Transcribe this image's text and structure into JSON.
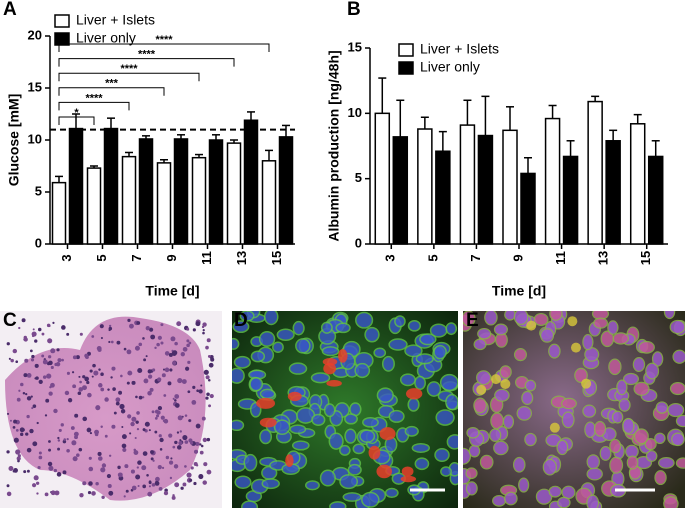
{
  "chart_data": [
    {
      "type": "bar",
      "panel": "A",
      "y_label": "Glucose [mM]",
      "x_label": "Time [d]",
      "categories": [
        "3",
        "5",
        "7",
        "9",
        "11",
        "13",
        "15"
      ],
      "series": [
        {
          "name": "Liver + Islets",
          "color": "#ffffff",
          "values": [
            5.9,
            7.3,
            8.4,
            7.8,
            8.3,
            9.7,
            8.0
          ],
          "errors": [
            0.6,
            0.2,
            0.4,
            0.3,
            0.3,
            0.3,
            1.0
          ]
        },
        {
          "name": "Liver only",
          "color": "#000000",
          "values": [
            11.1,
            11.1,
            10.1,
            10.1,
            10.0,
            11.9,
            10.3
          ],
          "errors": [
            1.4,
            1.0,
            0.3,
            0.4,
            0.5,
            0.8,
            1.1
          ]
        }
      ],
      "reference_line": 11,
      "comparisons": [
        {
          "label": "*",
          "between": [
            "3",
            "5"
          ]
        },
        {
          "label": "****",
          "between": [
            "3",
            "7"
          ]
        },
        {
          "label": "***",
          "between": [
            "3",
            "9"
          ]
        },
        {
          "label": "****",
          "between": [
            "3",
            "11"
          ]
        },
        {
          "label": "****",
          "between": [
            "3",
            "13"
          ]
        },
        {
          "label": "****",
          "between": [
            "3",
            "15"
          ]
        }
      ],
      "ylim": [
        0,
        20
      ],
      "yticks": [
        0,
        5,
        10,
        15,
        20
      ]
    },
    {
      "type": "bar",
      "panel": "B",
      "y_label": "Albumin production [ng/48h]",
      "x_label": "Time [d]",
      "categories": [
        "3",
        "5",
        "7",
        "9",
        "11",
        "13",
        "15"
      ],
      "series": [
        {
          "name": "Liver + Islets",
          "color": "#ffffff",
          "values": [
            10.0,
            8.8,
            9.1,
            8.7,
            9.6,
            10.9,
            9.2
          ],
          "errors": [
            2.7,
            0.9,
            1.9,
            1.8,
            1.0,
            0.4,
            0.7
          ]
        },
        {
          "name": "Liver only",
          "color": "#000000",
          "values": [
            8.2,
            7.1,
            8.3,
            5.4,
            6.7,
            7.9,
            6.7
          ],
          "errors": [
            2.8,
            1.5,
            3.0,
            1.2,
            1.2,
            0.8,
            1.2
          ]
        }
      ],
      "ylim": [
        0,
        15
      ],
      "yticks": [
        0,
        5,
        10,
        15
      ]
    }
  ],
  "image_panels": [
    {
      "label": "C"
    },
    {
      "label": "D"
    },
    {
      "label": "E"
    }
  ]
}
